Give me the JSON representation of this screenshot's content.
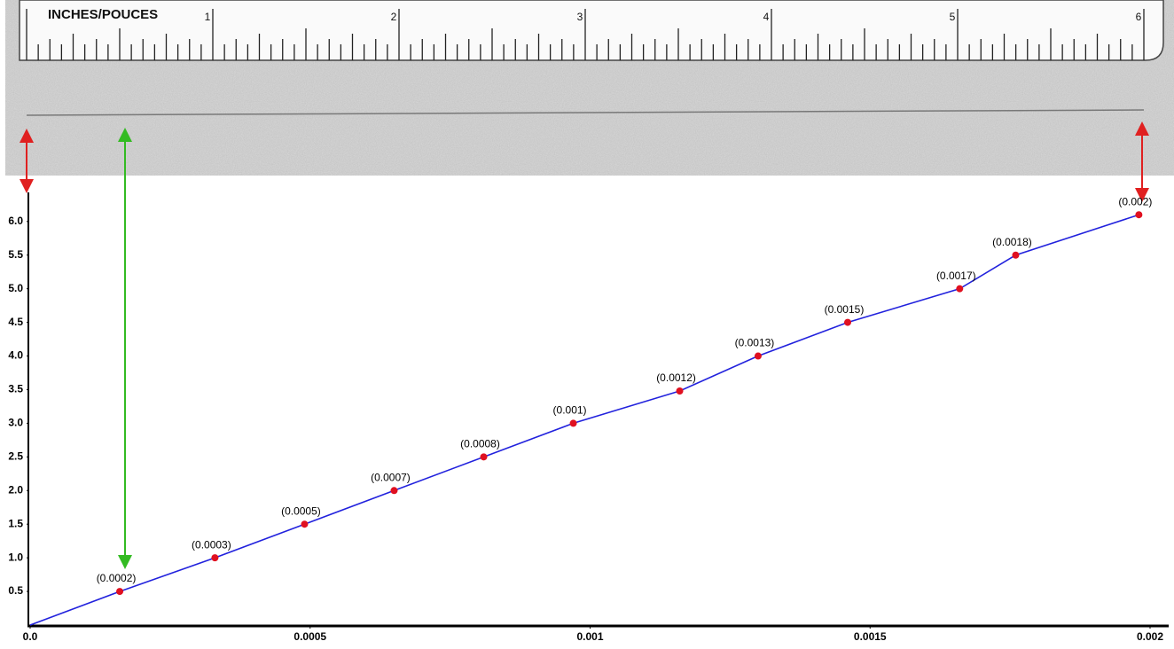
{
  "ruler": {
    "label": "INCHES/POUCES",
    "numbers": [
      "1",
      "2",
      "3",
      "4",
      "5",
      "6"
    ]
  },
  "chart_data": {
    "type": "line",
    "series": [
      {
        "color": "#2222dd",
        "marker_color": "#e01020",
        "x": [
          0.00016,
          0.00033,
          0.00049,
          0.00065,
          0.00081,
          0.00097,
          0.00116,
          0.0013,
          0.00146,
          0.00166,
          0.00176,
          0.00198
        ],
        "values": [
          0.5,
          1.0,
          1.5,
          2.0,
          2.5,
          3.0,
          3.48,
          4.0,
          4.5,
          5.0,
          5.5,
          6.1
        ],
        "x_labels": [
          "(0.0002)",
          "(0.0003)",
          "(0.0005)",
          "(0.0007)",
          "(0.0008)",
          "(0.001)",
          "(0.0012)",
          "(0.0013)",
          "(0.0015)",
          "(0.0017)",
          "(0.0018)",
          "(0.002)"
        ]
      }
    ],
    "xlim": [
      0,
      0.002
    ],
    "xticks": [
      {
        "value": 0,
        "label": "0.0"
      },
      0.0005,
      0.001,
      0.0015,
      0.002
    ],
    "ylim": [
      0,
      6.4
    ],
    "yticks": [
      0.5,
      {
        "value": 1,
        "label": "1.0"
      },
      1.5,
      {
        "value": 2,
        "label": "2.0"
      },
      2.5,
      {
        "value": 3,
        "label": "3.0"
      },
      3.5,
      {
        "value": 4,
        "label": "4.0"
      },
      4.5,
      {
        "value": 5,
        "label": "5.0"
      },
      5.5,
      {
        "value": 6,
        "label": "6.0"
      }
    ]
  }
}
